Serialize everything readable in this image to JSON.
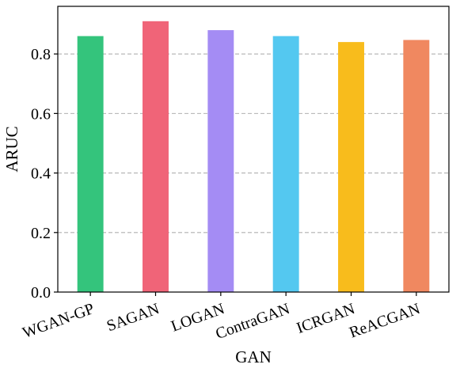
{
  "chart_data": {
    "type": "bar",
    "categories": [
      "WGAN-GP",
      "SAGAN",
      "LOGAN",
      "ContraGAN",
      "ICRGAN",
      "ReACGAN"
    ],
    "values": [
      0.86,
      0.91,
      0.88,
      0.86,
      0.84,
      0.847
    ],
    "colors": [
      "#34c47c",
      "#f06478",
      "#a48cf4",
      "#54c8f0",
      "#f8bc1c",
      "#f08860"
    ],
    "xlabel": "GAN",
    "ylabel": "ARUC",
    "ylim": [
      0,
      0.96
    ],
    "yticks": [
      0.0,
      0.2,
      0.4,
      0.6,
      0.8
    ],
    "ytick_labels": [
      "0.0",
      "0.2",
      "0.4",
      "0.6",
      "0.8"
    ],
    "grid": "y-dashed",
    "grid_color": "#b0b0b0",
    "legend": "none"
  }
}
